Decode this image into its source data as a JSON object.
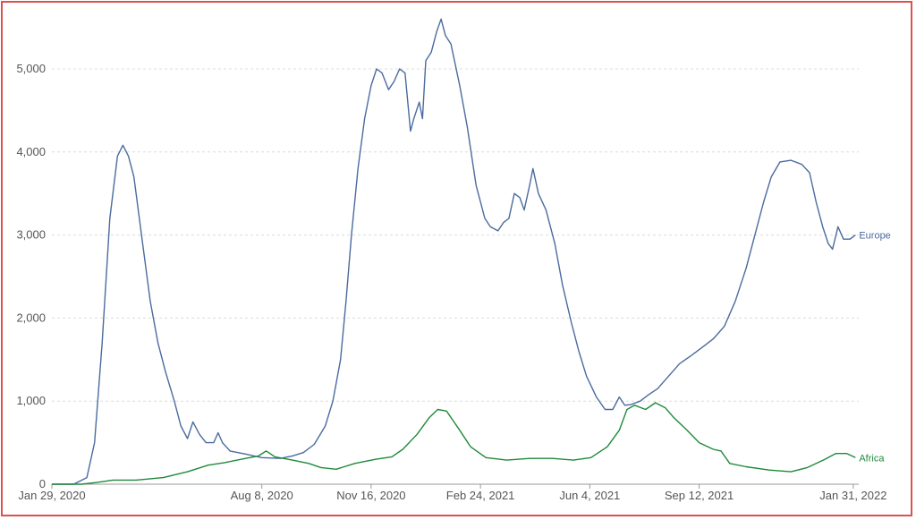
{
  "chart_data": {
    "type": "line",
    "title": "",
    "xlabel": "",
    "ylabel": "",
    "ylim": [
      0,
      5700
    ],
    "grid": true,
    "y_ticks": [
      {
        "value": 0,
        "label": "0"
      },
      {
        "value": 1000,
        "label": "1,000"
      },
      {
        "value": 2000,
        "label": "2,000"
      },
      {
        "value": 3000,
        "label": "3,000"
      },
      {
        "value": 4000,
        "label": "4,000"
      },
      {
        "value": 5000,
        "label": "5,000"
      }
    ],
    "x_ticks": [
      {
        "date": "2020-01-29",
        "label": "Jan 29, 2020"
      },
      {
        "date": "2020-08-08",
        "label": "Aug 8, 2020"
      },
      {
        "date": "2020-11-16",
        "label": "Nov 16, 2020"
      },
      {
        "date": "2021-02-24",
        "label": "Feb 24, 2021"
      },
      {
        "date": "2021-06-04",
        "label": "Jun 4, 2021"
      },
      {
        "date": "2021-09-12",
        "label": "Sep 12, 2021"
      },
      {
        "date": "2022-01-31",
        "label": "Jan 31, 2022"
      }
    ],
    "x_range": [
      "2020-01-29",
      "2022-02-05"
    ],
    "series": [
      {
        "name": "Europe",
        "color": "#4a6b9e",
        "points": [
          [
            "2020-01-29",
            0
          ],
          [
            "2020-02-18",
            0
          ],
          [
            "2020-03-01",
            80
          ],
          [
            "2020-03-08",
            500
          ],
          [
            "2020-03-15",
            1700
          ],
          [
            "2020-03-22",
            3200
          ],
          [
            "2020-03-29",
            3950
          ],
          [
            "2020-04-03",
            4080
          ],
          [
            "2020-04-08",
            3950
          ],
          [
            "2020-04-13",
            3700
          ],
          [
            "2020-04-20",
            3000
          ],
          [
            "2020-04-28",
            2200
          ],
          [
            "2020-05-05",
            1700
          ],
          [
            "2020-05-12",
            1350
          ],
          [
            "2020-05-20",
            1000
          ],
          [
            "2020-05-26",
            700
          ],
          [
            "2020-06-01",
            550
          ],
          [
            "2020-06-06",
            750
          ],
          [
            "2020-06-12",
            600
          ],
          [
            "2020-06-18",
            500
          ],
          [
            "2020-06-25",
            500
          ],
          [
            "2020-06-29",
            620
          ],
          [
            "2020-07-03",
            500
          ],
          [
            "2020-07-10",
            400
          ],
          [
            "2020-07-25",
            360
          ],
          [
            "2020-08-08",
            320
          ],
          [
            "2020-08-25",
            310
          ],
          [
            "2020-09-05",
            340
          ],
          [
            "2020-09-15",
            380
          ],
          [
            "2020-09-25",
            480
          ],
          [
            "2020-10-05",
            700
          ],
          [
            "2020-10-12",
            1000
          ],
          [
            "2020-10-19",
            1500
          ],
          [
            "2020-10-24",
            2200
          ],
          [
            "2020-10-29",
            3000
          ],
          [
            "2020-11-04",
            3800
          ],
          [
            "2020-11-10",
            4400
          ],
          [
            "2020-11-16",
            4800
          ],
          [
            "2020-11-21",
            5000
          ],
          [
            "2020-11-26",
            4950
          ],
          [
            "2020-12-02",
            4750
          ],
          [
            "2020-12-07",
            4850
          ],
          [
            "2020-12-12",
            5000
          ],
          [
            "2020-12-17",
            4950
          ],
          [
            "2020-12-22",
            4250
          ],
          [
            "2020-12-25",
            4400
          ],
          [
            "2020-12-30",
            4600
          ],
          [
            "2021-01-02",
            4400
          ],
          [
            "2021-01-05",
            5100
          ],
          [
            "2021-01-10",
            5200
          ],
          [
            "2021-01-15",
            5450
          ],
          [
            "2021-01-19",
            5600
          ],
          [
            "2021-01-23",
            5400
          ],
          [
            "2021-01-28",
            5300
          ],
          [
            "2021-02-05",
            4800
          ],
          [
            "2021-02-12",
            4300
          ],
          [
            "2021-02-20",
            3600
          ],
          [
            "2021-02-28",
            3200
          ],
          [
            "2021-03-05",
            3100
          ],
          [
            "2021-03-12",
            3050
          ],
          [
            "2021-03-17",
            3150
          ],
          [
            "2021-03-22",
            3200
          ],
          [
            "2021-03-27",
            3500
          ],
          [
            "2021-04-01",
            3450
          ],
          [
            "2021-04-05",
            3300
          ],
          [
            "2021-04-10",
            3600
          ],
          [
            "2021-04-13",
            3800
          ],
          [
            "2021-04-18",
            3500
          ],
          [
            "2021-04-25",
            3300
          ],
          [
            "2021-05-03",
            2900
          ],
          [
            "2021-05-10",
            2400
          ],
          [
            "2021-05-18",
            1950
          ],
          [
            "2021-05-25",
            1600
          ],
          [
            "2021-06-01",
            1300
          ],
          [
            "2021-06-10",
            1050
          ],
          [
            "2021-06-18",
            900
          ],
          [
            "2021-06-25",
            900
          ],
          [
            "2021-07-01",
            1050
          ],
          [
            "2021-07-06",
            950
          ],
          [
            "2021-07-12",
            960
          ],
          [
            "2021-07-20",
            1000
          ],
          [
            "2021-07-28",
            1080
          ],
          [
            "2021-08-05",
            1150
          ],
          [
            "2021-08-15",
            1300
          ],
          [
            "2021-08-25",
            1450
          ],
          [
            "2021-09-05",
            1550
          ],
          [
            "2021-09-15",
            1650
          ],
          [
            "2021-09-25",
            1750
          ],
          [
            "2021-10-05",
            1900
          ],
          [
            "2021-10-15",
            2200
          ],
          [
            "2021-10-25",
            2600
          ],
          [
            "2021-11-02",
            3000
          ],
          [
            "2021-11-10",
            3400
          ],
          [
            "2021-11-17",
            3700
          ],
          [
            "2021-11-25",
            3880
          ],
          [
            "2021-12-05",
            3900
          ],
          [
            "2021-12-15",
            3850
          ],
          [
            "2021-12-22",
            3750
          ],
          [
            "2021-12-28",
            3400
          ],
          [
            "2022-01-03",
            3100
          ],
          [
            "2022-01-08",
            2900
          ],
          [
            "2022-01-12",
            2830
          ],
          [
            "2022-01-17",
            3100
          ],
          [
            "2022-01-22",
            2950
          ],
          [
            "2022-01-28",
            2950
          ],
          [
            "2022-02-02",
            3000
          ]
        ]
      },
      {
        "name": "Africa",
        "color": "#1e8a3a",
        "points": [
          [
            "2020-01-29",
            0
          ],
          [
            "2020-02-25",
            0
          ],
          [
            "2020-03-10",
            20
          ],
          [
            "2020-03-25",
            50
          ],
          [
            "2020-04-15",
            50
          ],
          [
            "2020-05-10",
            80
          ],
          [
            "2020-06-01",
            150
          ],
          [
            "2020-06-20",
            230
          ],
          [
            "2020-07-05",
            260
          ],
          [
            "2020-07-20",
            300
          ],
          [
            "2020-08-05",
            340
          ],
          [
            "2020-08-12",
            400
          ],
          [
            "2020-08-20",
            330
          ],
          [
            "2020-09-05",
            290
          ],
          [
            "2020-09-20",
            250
          ],
          [
            "2020-10-01",
            200
          ],
          [
            "2020-10-15",
            180
          ],
          [
            "2020-11-01",
            250
          ],
          [
            "2020-11-20",
            300
          ],
          [
            "2020-12-05",
            330
          ],
          [
            "2020-12-15",
            420
          ],
          [
            "2020-12-28",
            600
          ],
          [
            "2021-01-08",
            800
          ],
          [
            "2021-01-16",
            900
          ],
          [
            "2021-01-24",
            880
          ],
          [
            "2021-02-05",
            650
          ],
          [
            "2021-02-15",
            450
          ],
          [
            "2021-03-01",
            320
          ],
          [
            "2021-03-20",
            290
          ],
          [
            "2021-04-10",
            310
          ],
          [
            "2021-05-01",
            310
          ],
          [
            "2021-05-20",
            290
          ],
          [
            "2021-06-05",
            320
          ],
          [
            "2021-06-20",
            450
          ],
          [
            "2021-07-01",
            650
          ],
          [
            "2021-07-08",
            900
          ],
          [
            "2021-07-15",
            950
          ],
          [
            "2021-07-25",
            900
          ],
          [
            "2021-08-03",
            980
          ],
          [
            "2021-08-12",
            920
          ],
          [
            "2021-08-20",
            800
          ],
          [
            "2021-09-01",
            650
          ],
          [
            "2021-09-12",
            500
          ],
          [
            "2021-09-25",
            420
          ],
          [
            "2021-10-02",
            400
          ],
          [
            "2021-10-10",
            250
          ],
          [
            "2021-10-25",
            210
          ],
          [
            "2021-11-15",
            170
          ],
          [
            "2021-12-05",
            150
          ],
          [
            "2021-12-20",
            200
          ],
          [
            "2022-01-05",
            300
          ],
          [
            "2022-01-15",
            370
          ],
          [
            "2022-01-25",
            370
          ],
          [
            "2022-02-02",
            320
          ]
        ]
      }
    ]
  }
}
